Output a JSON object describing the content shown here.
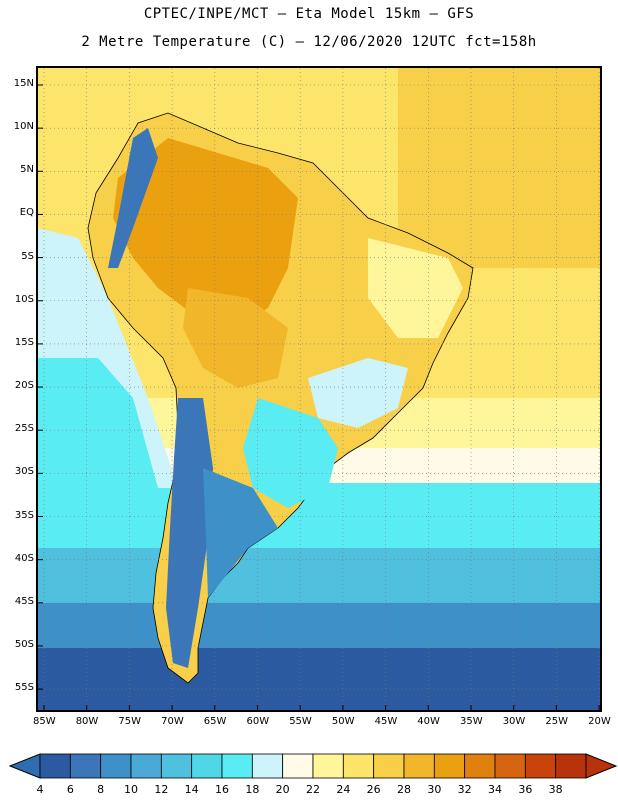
{
  "title_line1": "CPTEC/INPE/MCT –  Eta Model 15km – GFS",
  "title_line2": "2 Metre Temperature (C) – 12/06/2020 12UTC fct=158h",
  "lat_ticks": [
    "15N",
    "10N",
    "5N",
    "EQ",
    "5S",
    "10S",
    "15S",
    "20S",
    "25S",
    "30S",
    "35S",
    "40S",
    "45S",
    "50S",
    "55S"
  ],
  "lon_ticks": [
    "85W",
    "80W",
    "75W",
    "70W",
    "65W",
    "60W",
    "55W",
    "50W",
    "45W",
    "40W",
    "35W",
    "30W",
    "25W",
    "20W"
  ],
  "colorbar": {
    "labels": [
      "4",
      "6",
      "8",
      "10",
      "12",
      "14",
      "16",
      "18",
      "20",
      "22",
      "24",
      "26",
      "28",
      "30",
      "32",
      "34",
      "36",
      "38"
    ],
    "colors": [
      "#2b5aa0",
      "#3b76b8",
      "#3e90c8",
      "#4aa9d6",
      "#4fc1de",
      "#50d7e7",
      "#59ecf2",
      "#cdf3fb",
      "#fffbe6",
      "#fff59a",
      "#fde46a",
      "#f7cf48",
      "#f1b62a",
      "#eba10f",
      "#e0810f",
      "#d66410",
      "#c8440c",
      "#b8330c"
    ],
    "left_arrow_color": "#2f6db0",
    "right_arrow_color": "#b8330c"
  },
  "map_colors": {
    "ocean_warm": "#fde46a",
    "ocean_hot": "#f7cf48",
    "ocean_transition": "#fffbe6",
    "ocean_cool": "#59ecf2",
    "ocean_cold": "#4fc1de",
    "ocean_colder": "#3e90c8",
    "ocean_coldest": "#2b5aa0",
    "land_hot": "#eba10f",
    "land_warm": "#f7cf48",
    "land_mild": "#fff59a",
    "andes_cold": "#3b76b8",
    "patagonia": "#3e90c8"
  }
}
